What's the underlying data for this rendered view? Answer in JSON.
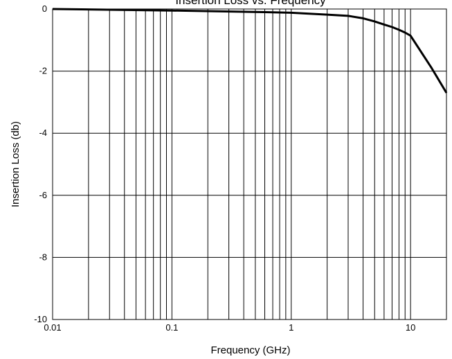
{
  "chart_data": {
    "type": "line",
    "title": "Insertion Loss vs. Frequency",
    "xlabel": "Frequency (GHz)",
    "ylabel": "Insertion Loss (db)",
    "xscale": "log",
    "xlim": [
      0.01,
      20
    ],
    "ylim": [
      -10,
      0
    ],
    "x_ticks": [
      0.01,
      0.1,
      1,
      10
    ],
    "x_tick_labels": [
      "0.01",
      "0.1",
      "1",
      "10"
    ],
    "y_ticks": [
      0,
      -2,
      -4,
      -6,
      -8,
      -10
    ],
    "y_tick_labels": [
      "0",
      "-2",
      "-4",
      "-6",
      "-8",
      "-10"
    ],
    "grid": true,
    "series": [
      {
        "color": "#000000",
        "x": [
          0.01,
          0.1,
          0.6,
          1,
          2,
          3,
          4,
          5,
          6,
          7,
          8,
          9,
          10,
          15,
          20
        ],
        "y": [
          0,
          -0.05,
          -0.1,
          -0.12,
          -0.18,
          -0.22,
          -0.3,
          -0.4,
          -0.5,
          -0.58,
          -0.67,
          -0.76,
          -0.86,
          -1.9,
          -2.7
        ]
      }
    ]
  }
}
